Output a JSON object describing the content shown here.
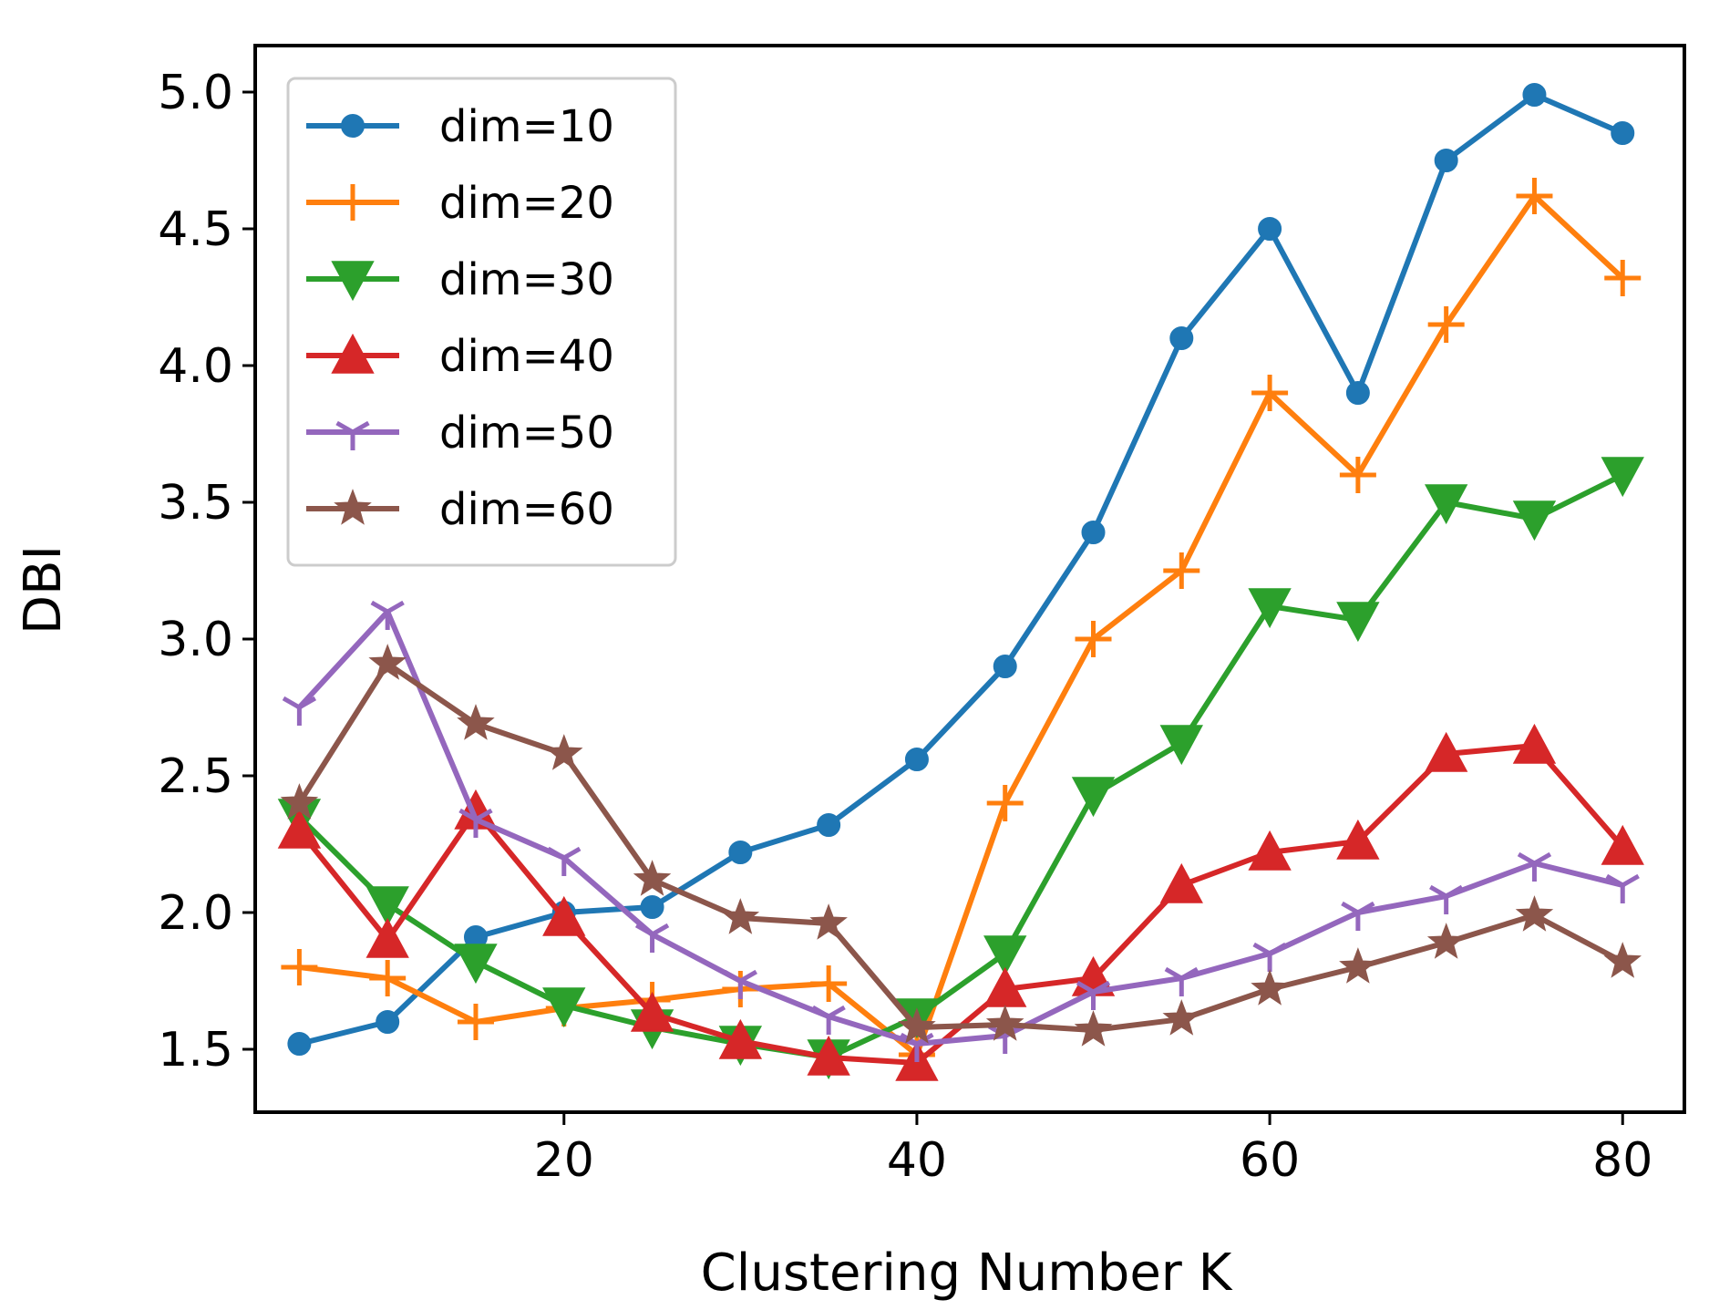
{
  "chart_data": {
    "type": "line",
    "title": "",
    "xlabel": "Clustering Number K",
    "ylabel": "DBI",
    "xlim": [
      2.5,
      83.5
    ],
    "ylim": [
      1.27,
      5.17
    ],
    "xticks": [
      20,
      40,
      60,
      80
    ],
    "yticks": [
      1.5,
      2.0,
      2.5,
      3.0,
      3.5,
      4.0,
      4.5,
      5.0
    ],
    "xtick_labels": [
      "20",
      "40",
      "60",
      "80"
    ],
    "ytick_labels": [
      "1.5",
      "2.0",
      "2.5",
      "3.0",
      "3.5",
      "4.0",
      "4.5",
      "5.0"
    ],
    "legend_position": "top-left",
    "x": [
      5,
      10,
      15,
      20,
      25,
      30,
      35,
      40,
      45,
      50,
      55,
      60,
      65,
      70,
      75,
      80
    ],
    "series": [
      {
        "name": "dim=10",
        "color": "#1f77b4",
        "marker": "circle",
        "values": [
          1.52,
          1.6,
          1.91,
          2.0,
          2.02,
          2.22,
          2.32,
          2.56,
          2.9,
          3.39,
          4.1,
          4.5,
          3.9,
          4.75,
          4.99,
          4.85
        ]
      },
      {
        "name": "dim=20",
        "color": "#ff7f0e",
        "marker": "plus",
        "values": [
          1.8,
          1.76,
          1.6,
          1.65,
          1.68,
          1.72,
          1.74,
          1.48,
          2.4,
          3.0,
          3.25,
          3.9,
          3.6,
          4.15,
          4.62,
          4.32
        ]
      },
      {
        "name": "dim=30",
        "color": "#2ca02c",
        "marker": "triangle-down",
        "values": [
          2.35,
          2.03,
          1.82,
          1.66,
          1.58,
          1.52,
          1.47,
          1.62,
          1.85,
          2.43,
          2.62,
          3.12,
          3.07,
          3.5,
          3.44,
          3.6
        ]
      },
      {
        "name": "dim=40",
        "color": "#d62728",
        "marker": "triangle-up",
        "values": [
          2.3,
          1.9,
          2.37,
          1.98,
          1.63,
          1.53,
          1.47,
          1.45,
          1.72,
          1.76,
          2.1,
          2.22,
          2.26,
          2.58,
          2.61,
          2.24
        ]
      },
      {
        "name": "dim=50",
        "color": "#9467bd",
        "marker": "tri-down",
        "values": [
          2.75,
          3.1,
          2.34,
          2.2,
          1.92,
          1.75,
          1.62,
          1.52,
          1.55,
          1.71,
          1.76,
          1.85,
          2.0,
          2.06,
          2.18,
          2.1
        ]
      },
      {
        "name": "dim=60",
        "color": "#8c564b",
        "marker": "star",
        "values": [
          2.4,
          2.91,
          2.69,
          2.58,
          2.12,
          1.98,
          1.96,
          1.58,
          1.59,
          1.57,
          1.61,
          1.72,
          1.8,
          1.89,
          1.99,
          1.82
        ]
      }
    ]
  }
}
